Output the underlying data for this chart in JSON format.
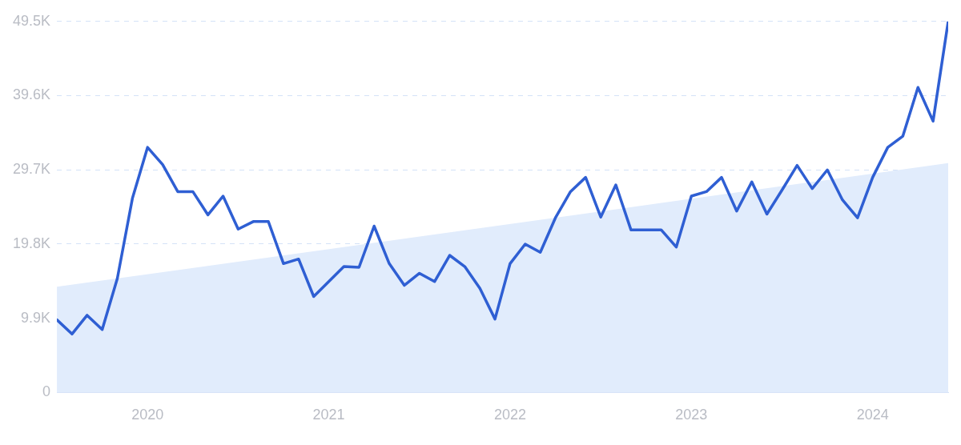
{
  "chart_data": {
    "type": "line",
    "x": [
      "2019-07",
      "2019-08",
      "2019-09",
      "2019-10",
      "2019-11",
      "2019-12",
      "2020-01",
      "2020-02",
      "2020-03",
      "2020-04",
      "2020-05",
      "2020-06",
      "2020-07",
      "2020-08",
      "2020-09",
      "2020-10",
      "2020-11",
      "2020-12",
      "2021-01",
      "2021-02",
      "2021-03",
      "2021-04",
      "2021-05",
      "2021-06",
      "2021-07",
      "2021-08",
      "2021-09",
      "2021-10",
      "2021-11",
      "2021-12",
      "2022-01",
      "2022-02",
      "2022-03",
      "2022-04",
      "2022-05",
      "2022-06",
      "2022-07",
      "2022-08",
      "2022-09",
      "2022-10",
      "2022-11",
      "2022-12",
      "2023-01",
      "2023-02",
      "2023-03",
      "2023-04",
      "2023-05",
      "2023-06",
      "2023-07",
      "2023-08",
      "2023-09",
      "2023-10",
      "2023-11",
      "2023-12",
      "2024-01",
      "2024-02",
      "2024-03",
      "2024-04",
      "2024-05",
      "2024-06"
    ],
    "series": [
      {
        "type": "area",
        "color": "#e1ecfc",
        "x": [
          "2019-07",
          "2024-06"
        ],
        "values": [
          14100,
          30600
        ]
      },
      {
        "type": "line",
        "color": "#2f5fd3",
        "values": [
          9700,
          7800,
          10300,
          8400,
          15200,
          25900,
          32700,
          30400,
          26800,
          26800,
          23700,
          26200,
          21800,
          22800,
          22800,
          17200,
          17800,
          12800,
          14800,
          16800,
          16700,
          22200,
          17200,
          14300,
          15900,
          14800,
          18300,
          16800,
          13900,
          9800,
          17200,
          19800,
          18700,
          23300,
          26800,
          28700,
          23400,
          27700,
          21700,
          21700,
          21700,
          19400,
          26200,
          26800,
          28700,
          24200,
          28100,
          23800,
          27000,
          30300,
          27200,
          29700,
          25700,
          23300,
          28700,
          32700,
          34200,
          40700,
          36200,
          49500
        ]
      }
    ],
    "xlim": [
      "2019-07",
      "2024-06"
    ],
    "xticks": [
      {
        "value": "2020",
        "label": "2020"
      },
      {
        "value": "2021",
        "label": "2021"
      },
      {
        "value": "2022",
        "label": "2022"
      },
      {
        "value": "2023",
        "label": "2023"
      },
      {
        "value": "2024",
        "label": "2024"
      }
    ],
    "ylim": [
      0,
      49500
    ],
    "yticks": [
      0,
      {
        "value": 9900,
        "label": "9.9K"
      },
      {
        "value": 19800,
        "label": "19.8K"
      },
      {
        "value": 29700,
        "label": "29.7K"
      },
      {
        "value": 39600,
        "label": "39.6K"
      },
      {
        "value": 49500,
        "label": "49.5K"
      }
    ],
    "grid": "y",
    "legend": false,
    "marker": "none",
    "line_style": "solid"
  }
}
